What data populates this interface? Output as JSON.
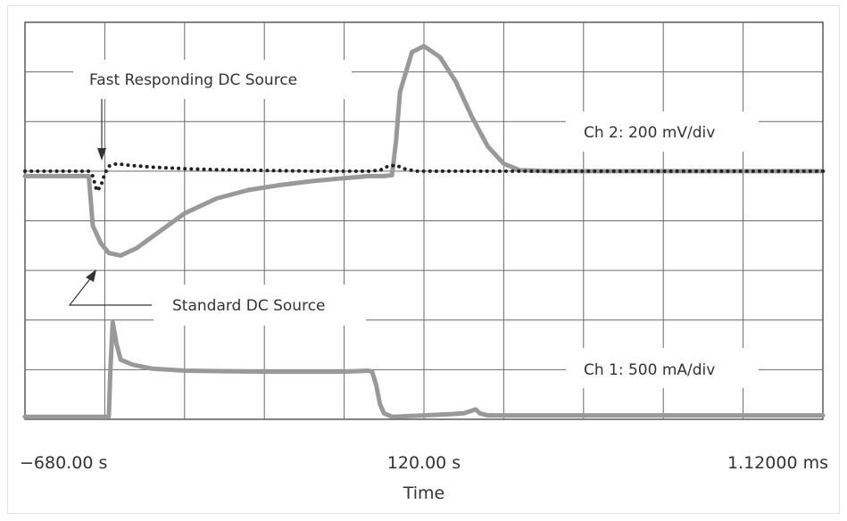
{
  "chart_data": {
    "type": "line",
    "title": "",
    "xlabel": "Time",
    "ylabel": "",
    "grid": true,
    "divisions": {
      "x": 10,
      "y": 8
    },
    "xlim": [
      0,
      10
    ],
    "ylim": [
      0,
      8
    ],
    "x_tick_labels": [
      "−680.00 s",
      "120.00 s",
      "1.12000 ms"
    ],
    "x_tick_positions": [
      1,
      5,
      10
    ],
    "series": [
      {
        "name": "Standard DC Source",
        "style": "solid",
        "color": "#999999",
        "x": [
          0,
          0.8,
          0.82,
          0.85,
          0.95,
          1.05,
          1.2,
          1.4,
          1.7,
          2.0,
          2.4,
          2.8,
          3.2,
          3.6,
          4.0,
          4.3,
          4.5,
          4.6,
          4.65,
          4.7,
          4.85,
          5.0,
          5.2,
          5.4,
          5.6,
          5.8,
          6.0,
          6.2,
          6.6,
          7.0,
          8.0,
          9.0,
          10.0
        ],
        "y": [
          4.9,
          4.9,
          4.5,
          3.9,
          3.55,
          3.35,
          3.3,
          3.45,
          3.8,
          4.15,
          4.45,
          4.62,
          4.72,
          4.8,
          4.86,
          4.9,
          4.9,
          4.92,
          5.6,
          6.6,
          7.4,
          7.52,
          7.3,
          6.8,
          6.1,
          5.5,
          5.15,
          5.02,
          5.0,
          5.0,
          5.0,
          5.0,
          5.0
        ]
      },
      {
        "name": "Fast Responding DC Source",
        "style": "dotted",
        "color": "#222222",
        "x": [
          0,
          0.8,
          0.85,
          0.9,
          0.95,
          1.0,
          1.05,
          1.15,
          1.3,
          1.6,
          2.0,
          2.4,
          2.8,
          3.2,
          3.6,
          4.0,
          4.3,
          4.45,
          4.55,
          4.65,
          4.75,
          4.9,
          5.1,
          5.5,
          6.0,
          7.0,
          8.0,
          9.0,
          10.0
        ],
        "y": [
          5.0,
          5.0,
          4.9,
          4.6,
          4.7,
          4.95,
          5.1,
          5.15,
          5.12,
          5.08,
          5.05,
          5.03,
          5.02,
          5.01,
          5.0,
          5.0,
          5.0,
          5.02,
          5.1,
          5.12,
          5.05,
          5.0,
          5.0,
          5.0,
          5.0,
          5.0,
          5.0,
          5.0,
          5.0
        ]
      },
      {
        "name": "Ch 1",
        "style": "solid",
        "color": "#999999",
        "x": [
          0,
          1.05,
          1.07,
          1.1,
          1.15,
          1.2,
          1.35,
          1.6,
          2.0,
          3.0,
          4.0,
          4.3,
          4.35,
          4.4,
          4.45,
          4.5,
          4.6,
          5.0,
          5.3,
          5.5,
          5.65,
          5.7,
          5.8,
          7.0,
          8.0,
          9.0,
          10.0
        ],
        "y": [
          0.05,
          0.05,
          1.0,
          1.95,
          1.5,
          1.2,
          1.1,
          1.02,
          0.98,
          0.96,
          0.96,
          0.98,
          0.96,
          0.7,
          0.3,
          0.12,
          0.05,
          0.08,
          0.1,
          0.12,
          0.2,
          0.12,
          0.08,
          0.08,
          0.08,
          0.08,
          0.08
        ]
      }
    ],
    "annotations": [
      {
        "text": "Fast Responding DC Source"
      },
      {
        "text": "Standard DC Source"
      },
      {
        "text": "Ch 2: 200 mV/div"
      },
      {
        "text": "Ch 1: 500 mA/div"
      }
    ]
  }
}
